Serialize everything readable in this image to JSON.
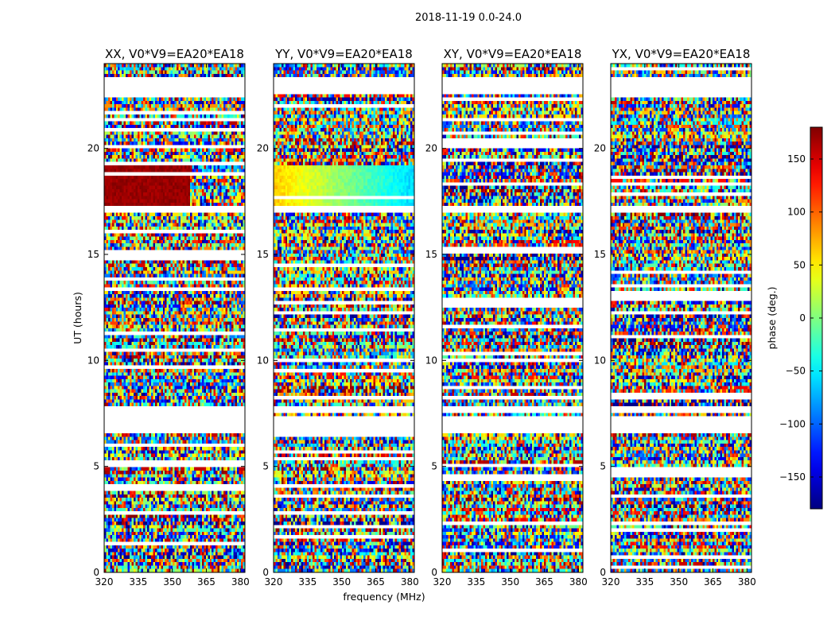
{
  "figure_title": "2018-11-19 0.0-24.0",
  "chart_data": {
    "type": "heatmap",
    "xlabel": "frequency (MHz)",
    "ylabel": "UT (hours)",
    "xlim": [
      320,
      382
    ],
    "ylim": [
      0,
      24
    ],
    "xticks": [
      320,
      335,
      350,
      365,
      380
    ],
    "yticks": [
      0,
      5,
      10,
      15,
      20
    ],
    "panels": [
      {
        "title": "XX, V0*V9=EA20*EA18"
      },
      {
        "title": "YY, V0*V9=EA20*EA18"
      },
      {
        "title": "XY, V0*V9=EA20*EA18"
      },
      {
        "title": "YX, V0*V9=EA20*EA18"
      }
    ],
    "colorbar": {
      "label": "phase (deg.)",
      "range": [
        -180,
        180
      ],
      "ticks": [
        150,
        100,
        50,
        0,
        -50,
        -100,
        -150
      ],
      "colormap": "jet"
    },
    "blank_time_ranges_hours": [
      [
        22.6,
        23.3
      ],
      [
        16.9,
        17.3
      ],
      [
        7.6,
        7.9
      ],
      [
        6.6,
        7.4
      ],
      [
        3.45,
        3.6
      ]
    ]
  }
}
